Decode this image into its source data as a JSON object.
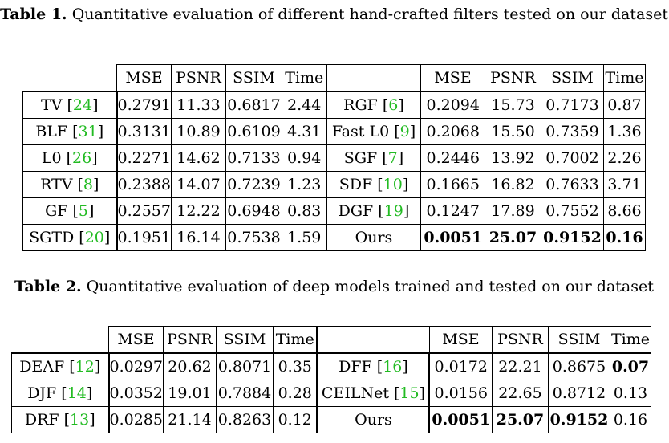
{
  "table1": {
    "label": "Table 1.",
    "caption": "Quantitative evaluation of different hand-crafted filters tested on our dataset",
    "headers": [
      "MSE",
      "PSNR",
      "SSIM",
      "Time"
    ],
    "rows": [
      {
        "l_name": "TV",
        "l_ref": "24",
        "l": [
          "0.2791",
          "11.33",
          "0.6817",
          "2.44"
        ],
        "r_name": "RGF",
        "r_ref": "6",
        "r": [
          "0.2094",
          "15.73",
          "0.7173",
          "0.87"
        ]
      },
      {
        "l_name": "BLF",
        "l_ref": "31",
        "l": [
          "0.3131",
          "10.89",
          "0.6109",
          "4.31"
        ],
        "r_name": "Fast L0",
        "r_ref": "9",
        "r": [
          "0.2068",
          "15.50",
          "0.7359",
          "1.36"
        ]
      },
      {
        "l_name": "L0",
        "l_ref": "26",
        "l": [
          "0.2271",
          "14.62",
          "0.7133",
          "0.94"
        ],
        "r_name": "SGF",
        "r_ref": "7",
        "r": [
          "0.2446",
          "13.92",
          "0.7002",
          "2.26"
        ]
      },
      {
        "l_name": "RTV",
        "l_ref": "8",
        "l": [
          "0.2388",
          "14.07",
          "0.7239",
          "1.23"
        ],
        "r_name": "SDF",
        "r_ref": "10",
        "r": [
          "0.1665",
          "16.82",
          "0.7633",
          "3.71"
        ]
      },
      {
        "l_name": "GF",
        "l_ref": "5",
        "l": [
          "0.2557",
          "12.22",
          "0.6948",
          "0.83"
        ],
        "r_name": "DGF",
        "r_ref": "19",
        "r": [
          "0.1247",
          "17.89",
          "0.7552",
          "8.66"
        ]
      },
      {
        "l_name": "SGTD",
        "l_ref": "20",
        "l": [
          "0.1951",
          "16.14",
          "0.7538",
          "1.59"
        ],
        "r_name": "Ours",
        "r": [
          "0.0051",
          "25.07",
          "0.9152",
          "0.16"
        ]
      }
    ]
  },
  "table2": {
    "label": "Table 2.",
    "caption": "Quantitative evaluation of deep models trained and tested on our dataset",
    "headers": [
      "MSE",
      "PSNR",
      "SSIM",
      "Time"
    ],
    "rows": [
      {
        "l_name": "DEAF",
        "l_ref": "12",
        "l": [
          "0.0297",
          "20.62",
          "0.8071",
          "0.35"
        ],
        "r_name": "DFF",
        "r_ref": "16",
        "r": [
          "0.0172",
          "22.21",
          "0.8675",
          "0.07"
        ]
      },
      {
        "l_name": "DJF",
        "l_ref": "14",
        "l": [
          "0.0352",
          "19.01",
          "0.7884",
          "0.28"
        ],
        "r_name": "CEILNet",
        "r_ref": "15",
        "r": [
          "0.0156",
          "22.65",
          "0.8712",
          "0.13"
        ]
      },
      {
        "l_name": "DRF",
        "l_ref": "13",
        "l": [
          "0.0285",
          "21.14",
          "0.8263",
          "0.12"
        ],
        "r_name": "Ours",
        "r": [
          "0.0051",
          "25.07",
          "0.9152",
          "0.16"
        ]
      }
    ]
  }
}
